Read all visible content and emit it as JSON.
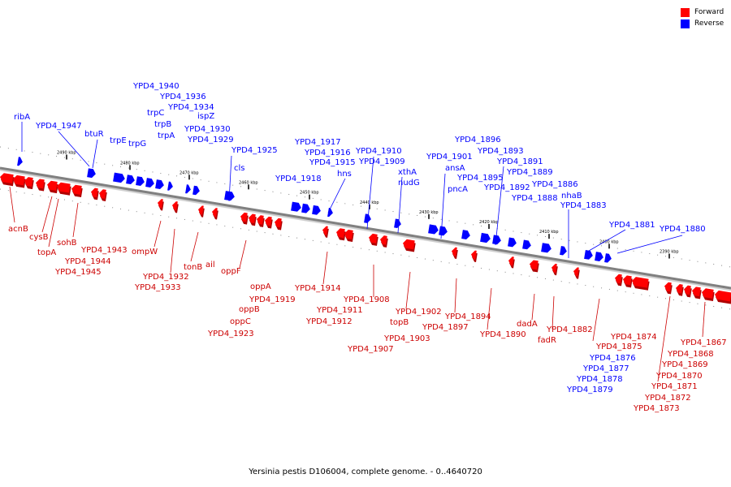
{
  "caption": "Yersinia pestis D106004, complete genome. - 0..4640720",
  "legend": [
    {
      "label": "Forward",
      "color": "#ff0000"
    },
    {
      "label": "Reverse",
      "color": "#0000ff"
    }
  ],
  "colors": {
    "forward": "#ff0000",
    "forward_dark": "#b00000",
    "reverse": "#0000ff",
    "backbone": "#808080"
  },
  "ticks": [
    "2490 kbp",
    "2480 kbp",
    "2470 kbp",
    "2460 kbp",
    "2450 kbp",
    "2440 kbp",
    "2430 kbp",
    "2420 kbp",
    "2410 kbp",
    "2400 kbp",
    "2390 kbp"
  ],
  "reverse_labels": [
    "ribA",
    "YPD4_1947",
    "btuR",
    "trpE",
    "trpG",
    "trpC",
    "YPD4_1940",
    "trpB",
    "YPD4_1936",
    "trpA",
    "YPD4_1934",
    "ispZ",
    "YPD4_1930",
    "YPD4_1929",
    "cls",
    "YPD4_1925",
    "YPD4_1918",
    "YPD4_1917",
    "YPD4_1916",
    "YPD4_1915",
    "hns",
    "YPD4_1910",
    "YPD4_1909",
    "xthA",
    "nudG",
    "YPD4_1901",
    "ansA",
    "pncA",
    "YPD4_1896",
    "YPD4_1895",
    "YPD4_1893",
    "YPD4_1892",
    "YPD4_1891",
    "YPD4_1889",
    "YPD4_1888",
    "YPD4_1886",
    "nhaB",
    "YPD4_1883",
    "YPD4_1881",
    "YPD4_1880",
    "YPD4_1879",
    "YPD4_1878",
    "YPD4_1877",
    "YPD4_1876"
  ],
  "forward_labels": [
    "acnB",
    "cysB",
    "topA",
    "sohB",
    "YPD4_1943",
    "YPD4_1944",
    "YPD4_1945",
    "ompW",
    "YPD4_1932",
    "YPD4_1933",
    "tonB",
    "ail",
    "oppF",
    "oppA",
    "YPD4_1919",
    "oppB",
    "oppC",
    "YPD4_1923",
    "YPD4_1914",
    "YPD4_1911",
    "YPD4_1912",
    "YPD4_1908",
    "YPD4_1907",
    "YPD4_1902",
    "topB",
    "YPD4_1903",
    "YPD4_1897",
    "YPD4_1894",
    "YPD4_1890",
    "dadA",
    "fadR",
    "YPD4_1882",
    "YPD4_1875",
    "YPD4_1874",
    "YPD4_1867",
    "YPD4_1868",
    "YPD4_1869",
    "YPD4_1870",
    "YPD4_1871",
    "YPD4_1872",
    "YPD4_1873"
  ]
}
